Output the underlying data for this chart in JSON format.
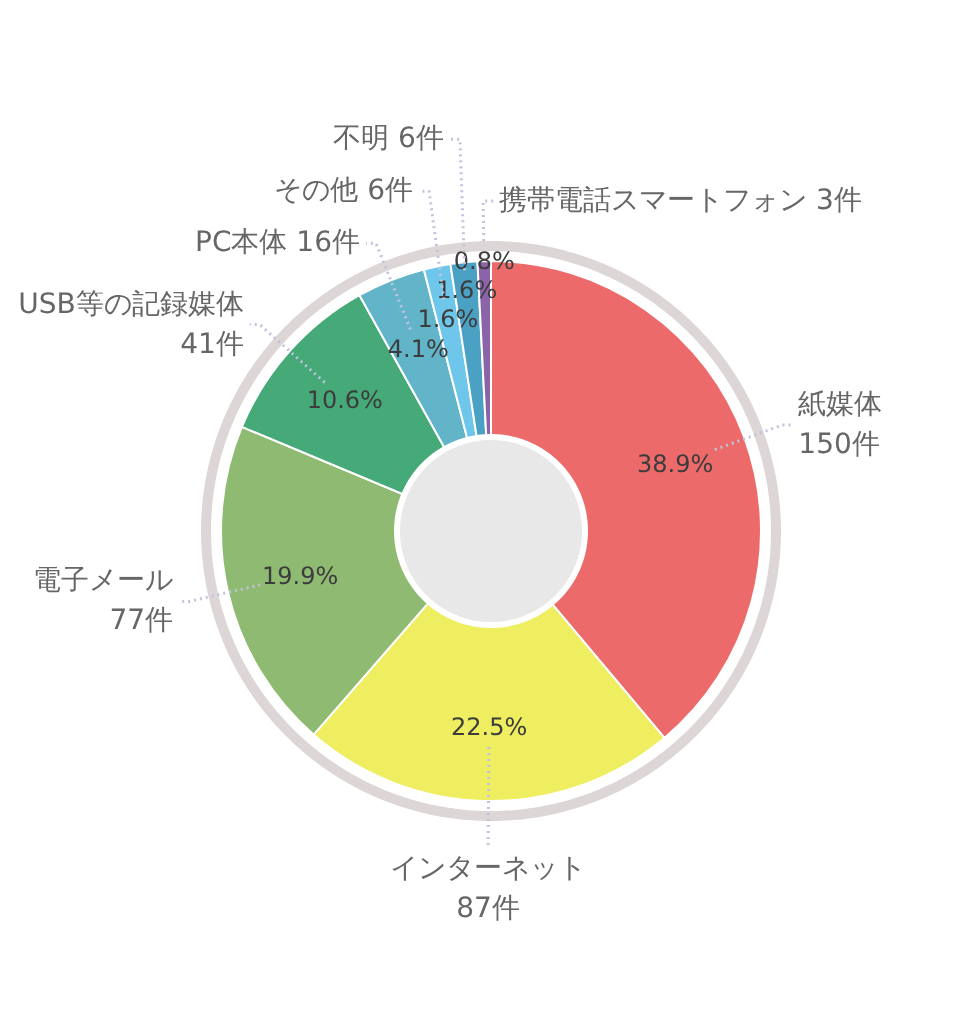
{
  "chart_data": {
    "type": "donut",
    "categories": [
      "紙媒体\n150件",
      "インターネット\n87件",
      "電子メール\n77件",
      "USB等の記録媒体\n41件",
      "PC本体 16件",
      "その他 6件",
      "不明 6件",
      "携帯電話スマートフォン 3件"
    ],
    "values": [
      38.9,
      22.5,
      19.9,
      10.6,
      4.1,
      1.6,
      1.6,
      0.8
    ],
    "colors": [
      "#ec6a6a",
      "#eeee60",
      "#8fba72",
      "#46aa78",
      "#62b5c9",
      "#6ec6ea",
      "#4aa1c3",
      "#8a63a8"
    ],
    "value_labels": [
      "38.9%",
      "22.5%",
      "19.9%",
      "10.6%",
      "4.1%",
      "1.6%",
      "1.6%",
      "0.8%"
    ]
  }
}
